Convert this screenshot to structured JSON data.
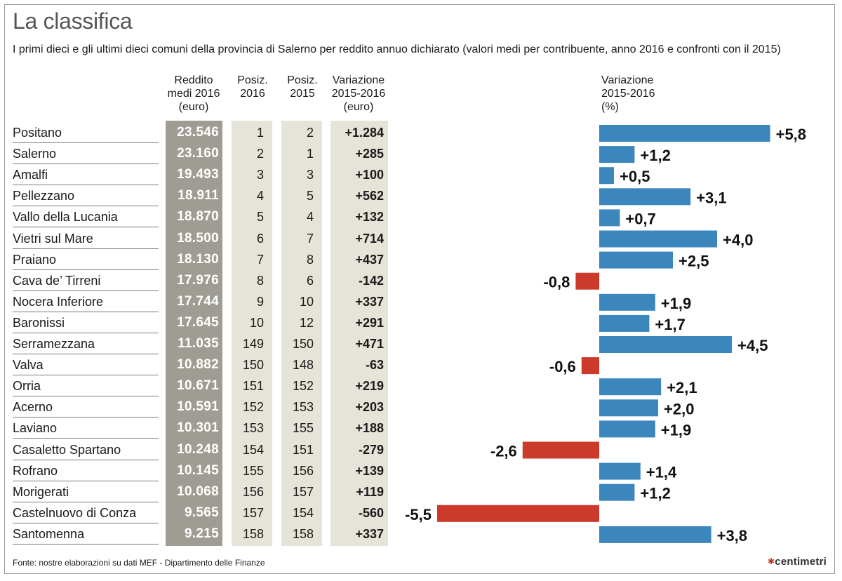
{
  "title": "La classifica",
  "subtitle": "I primi dieci e gli ultimi dieci comuni della provincia di Salerno per reddito annuo dichiarato (valori medi per contribuente, anno 2016 e confronti con il 2015)",
  "headers": {
    "reddito": [
      "Reddito",
      "medi 2016",
      "(euro)"
    ],
    "pos2016": [
      "Posiz.",
      "2016"
    ],
    "pos2015": [
      "Posiz.",
      "2015"
    ],
    "variazione_euro": [
      "Variazione",
      "2015-2016",
      "(euro)"
    ],
    "variazione_pct": [
      "Variazione",
      "2015-2016",
      "(%)"
    ]
  },
  "source": "Fonte: nostre elaborazioni su dati MEF - Dipartimento delle Finanze",
  "logo": "centimetri",
  "colors": {
    "positive": "#3b87bd",
    "negative": "#cc3a2c",
    "reddito_bg": "#9e9c93",
    "cell_bg": "#e6e3d9"
  },
  "rows": [
    {
      "name": "Positano",
      "reddito": "23.546",
      "pos2016": "1",
      "pos2015": "2",
      "var_euro": "+1.284",
      "var_label": "+5,8"
    },
    {
      "name": "Salerno",
      "reddito": "23.160",
      "pos2016": "2",
      "pos2015": "1",
      "var_euro": "+285",
      "var_label": "+1,2"
    },
    {
      "name": "Amalfi",
      "reddito": "19.493",
      "pos2016": "3",
      "pos2015": "3",
      "var_euro": "+100",
      "var_label": "+0,5"
    },
    {
      "name": "Pellezzano",
      "reddito": "18.911",
      "pos2016": "4",
      "pos2015": "5",
      "var_euro": "+562",
      "var_label": "+3,1"
    },
    {
      "name": "Vallo della Lucania",
      "reddito": "18.870",
      "pos2016": "5",
      "pos2015": "4",
      "var_euro": "+132",
      "var_label": "+0,7"
    },
    {
      "name": "Vietri sul Mare",
      "reddito": "18.500",
      "pos2016": "6",
      "pos2015": "7",
      "var_euro": "+714",
      "var_label": "+4,0"
    },
    {
      "name": "Praiano",
      "reddito": "18.130",
      "pos2016": "7",
      "pos2015": "8",
      "var_euro": "+437",
      "var_label": "+2,5"
    },
    {
      "name": "Cava de’ Tirreni",
      "reddito": "17.976",
      "pos2016": "8",
      "pos2015": "6",
      "var_euro": "-142",
      "var_label": "-0,8"
    },
    {
      "name": "Nocera Inferiore",
      "reddito": "17.744",
      "pos2016": "9",
      "pos2015": "10",
      "var_euro": "+337",
      "var_label": "+1,9"
    },
    {
      "name": "Baronissi",
      "reddito": "17.645",
      "pos2016": "10",
      "pos2015": "12",
      "var_euro": "+291",
      "var_label": "+1,7"
    },
    {
      "name": "Serramezzana",
      "reddito": "11.035",
      "pos2016": "149",
      "pos2015": "150",
      "var_euro": "+471",
      "var_label": "+4,5"
    },
    {
      "name": "Valva",
      "reddito": "10.882",
      "pos2016": "150",
      "pos2015": "148",
      "var_euro": "-63",
      "var_label": "-0,6"
    },
    {
      "name": "Orria",
      "reddito": "10.671",
      "pos2016": "151",
      "pos2015": "152",
      "var_euro": "+219",
      "var_label": "+2,1"
    },
    {
      "name": "Acerno",
      "reddito": "10.591",
      "pos2016": "152",
      "pos2015": "153",
      "var_euro": "+203",
      "var_label": "+2,0"
    },
    {
      "name": "Laviano",
      "reddito": "10.301",
      "pos2016": "153",
      "pos2015": "155",
      "var_euro": "+188",
      "var_label": "+1,9"
    },
    {
      "name": "Casaletto Spartano",
      "reddito": "10.248",
      "pos2016": "154",
      "pos2015": "151",
      "var_euro": "-279",
      "var_label": "-2,6"
    },
    {
      "name": "Rofrano",
      "reddito": "10.145",
      "pos2016": "155",
      "pos2015": "156",
      "var_euro": "+139",
      "var_label": "+1,4"
    },
    {
      "name": "Morigerati",
      "reddito": "10.068",
      "pos2016": "156",
      "pos2015": "157",
      "var_euro": "+119",
      "var_label": "+1,2"
    },
    {
      "name": "Castelnuovo di Conza",
      "reddito": "9.565",
      "pos2016": "157",
      "pos2015": "154",
      "var_euro": "-560",
      "var_label": "-5,5"
    },
    {
      "name": "Santomenna",
      "reddito": "9.215",
      "pos2016": "158",
      "pos2015": "158",
      "var_euro": "+337",
      "var_label": "+3,8"
    }
  ],
  "chart_data": {
    "type": "bar",
    "orientation": "horizontal",
    "categories": [
      "Positano",
      "Salerno",
      "Amalfi",
      "Pellezzano",
      "Vallo della Lucania",
      "Vietri sul Mare",
      "Praiano",
      "Cava de’ Tirreni",
      "Nocera Inferiore",
      "Baronissi",
      "Serramezzana",
      "Valva",
      "Orria",
      "Acerno",
      "Laviano",
      "Casaletto Spartano",
      "Rofrano",
      "Morigerati",
      "Castelnuovo di Conza",
      "Santomenna"
    ],
    "values": [
      5.8,
      1.2,
      0.5,
      3.1,
      0.7,
      4.0,
      2.5,
      -0.8,
      1.9,
      1.7,
      4.5,
      -0.6,
      2.1,
      2.0,
      1.9,
      -2.6,
      1.4,
      1.2,
      -5.5,
      3.8
    ],
    "title": "Variazione 2015-2016 (%)",
    "xlim": [
      -5.5,
      5.8
    ],
    "grid": false,
    "legend": "none"
  }
}
